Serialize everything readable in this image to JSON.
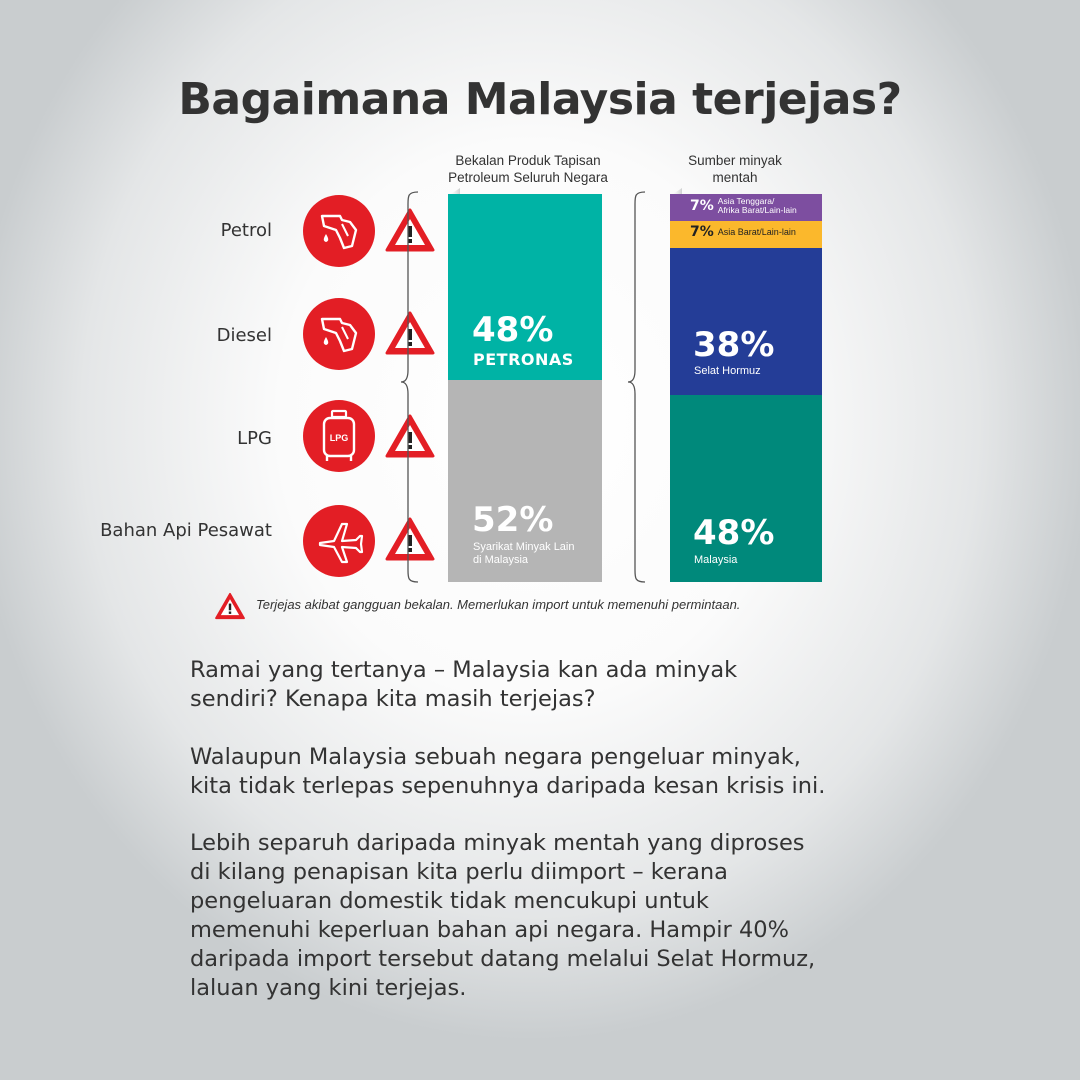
{
  "title": "Bagaimana Malaysia terjejas?",
  "products": [
    "Petrol",
    "Diesel",
    "LPG",
    "Bahan Api Pesawat"
  ],
  "product_icons": [
    "fuel-nozzle-icon",
    "fuel-nozzle-icon",
    "lpg-cylinder-icon",
    "airplane-icon"
  ],
  "lpg_text": "LPG",
  "colors": {
    "red": "#e31e25",
    "petronas_teal": "#00b3a5",
    "other_grey": "#b5b5b5",
    "purple": "#7d4ea0",
    "yellow": "#fbb82c",
    "hormuz_blue": "#243d97",
    "malaysia_green": "#00897b"
  },
  "chart_data": [
    {
      "type": "bar",
      "stacked": true,
      "title": "Bekalan Produk Tapisan Petroleum Seluruh Negara",
      "title_lines": [
        "Bekalan Produk Tapisan",
        "Petroleum Seluruh Negara"
      ],
      "series": [
        {
          "name": "PETRONAS",
          "value": 48,
          "value_label": "48%",
          "color": "#00b3a5"
        },
        {
          "name": "Syarikat Minyak Lain di Malaysia",
          "name_lines": [
            "Syarikat Minyak Lain",
            "di Malaysia"
          ],
          "value": 52,
          "value_label": "52%",
          "color": "#b5b5b5"
        }
      ],
      "unit": "%"
    },
    {
      "type": "bar",
      "stacked": true,
      "title": "Sumber minyak mentah",
      "title_lines": [
        "Sumber minyak",
        "mentah"
      ],
      "series": [
        {
          "name": "Asia Tenggara/Afrika Barat/Lain-lain",
          "name_lines": [
            "Asia Tenggara/",
            "Afrika Barat/Lain-lain"
          ],
          "value": 7,
          "value_label": "7%",
          "color": "#7d4ea0"
        },
        {
          "name": "Asia Barat/Lain-lain",
          "value": 7,
          "value_label": "7%",
          "color": "#fbb82c"
        },
        {
          "name": "Selat Hormuz",
          "value": 38,
          "value_label": "38%",
          "color": "#243d97"
        },
        {
          "name": "Malaysia",
          "value": 48,
          "value_label": "48%",
          "color": "#00897b"
        }
      ],
      "unit": "%"
    }
  ],
  "note": "Terjejas akibat gangguan bekalan. Memerlukan import untuk memenuhi permintaan.",
  "paragraphs": [
    [
      "Ramai yang tertanya – Malaysia kan ada minyak",
      "sendiri? Kenapa kita masih terjejas?"
    ],
    [
      "Walaupun Malaysia sebuah negara pengeluar minyak,",
      "kita tidak terlepas sepenuhnya daripada kesan krisis ini."
    ],
    [
      "Lebih separuh daripada minyak mentah yang diproses",
      "di kilang penapisan kita perlu diimport – kerana",
      "pengeluaran domestik tidak mencukupi untuk",
      "memenuhi keperluan bahan api negara. Hampir 40%",
      "daripada import tersebut datang melalui Selat Hormuz,",
      "laluan yang kini terjejas."
    ]
  ]
}
